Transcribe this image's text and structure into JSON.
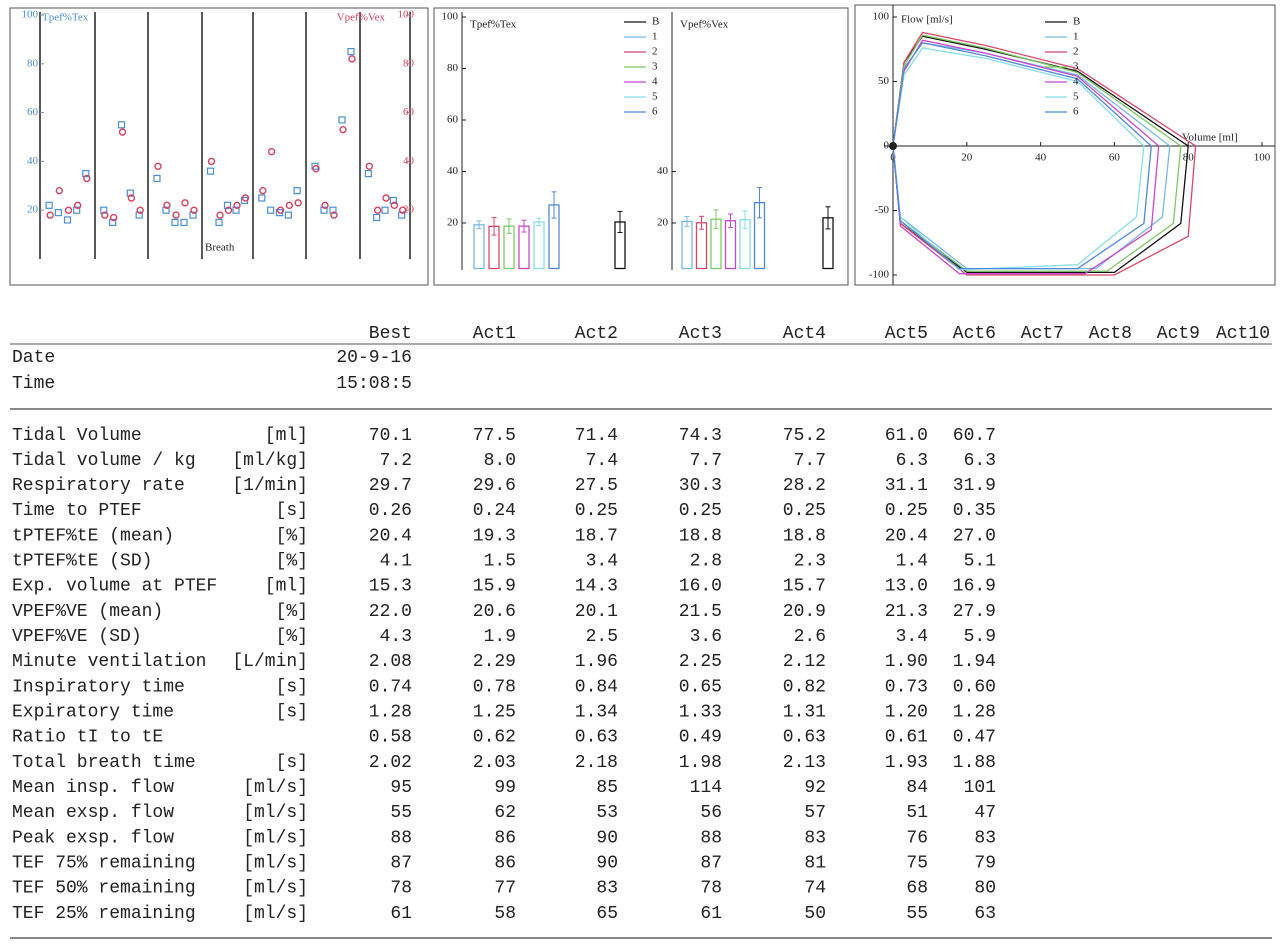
{
  "panels": [
    {
      "type": "scatter",
      "left_label": "Tpef%Tex",
      "right_label": "Vpef%Vex",
      "xlabel": "Breath",
      "ylim": [
        0,
        100
      ],
      "yticks": [
        20,
        40,
        60,
        80,
        100
      ],
      "y2ticks": [
        20,
        40,
        60,
        80,
        100
      ],
      "series": [
        {
          "color": "#4a8fd6",
          "marker": "square",
          "values": [
            [
              22,
              19,
              16,
              20,
              35
            ],
            [
              20,
              15,
              55,
              27,
              18
            ],
            [
              33,
              20,
              15,
              15,
              18
            ],
            [
              36,
              15,
              22,
              20,
              24
            ],
            [
              25,
              20,
              19,
              18,
              28
            ],
            [
              38,
              20,
              20,
              57,
              85
            ],
            [
              35,
              17,
              20,
              24,
              18
            ]
          ]
        },
        {
          "color": "#d8405e",
          "marker": "circle",
          "values": [
            [
              18,
              28,
              20,
              22,
              33
            ],
            [
              18,
              17,
              52,
              25,
              20
            ],
            [
              38,
              22,
              18,
              23,
              20
            ],
            [
              40,
              18,
              20,
              22,
              25
            ],
            [
              28,
              44,
              20,
              22,
              23
            ],
            [
              37,
              22,
              18,
              53,
              82
            ],
            [
              38,
              20,
              25,
              22,
              20
            ]
          ]
        }
      ]
    },
    {
      "type": "bar",
      "ylim": [
        0,
        100
      ],
      "series": [
        {
          "name": "B",
          "color": "#111111"
        },
        {
          "name": "1",
          "color": "#7ab8e8"
        },
        {
          "name": "2",
          "color": "#d8486a"
        },
        {
          "name": "3",
          "color": "#7cc864"
        },
        {
          "name": "4",
          "color": "#c848c8"
        },
        {
          "name": "5",
          "color": "#88dde8"
        },
        {
          "name": "6",
          "color": "#5088d8"
        }
      ],
      "subplots": [
        {
          "title": "Tpef%Tex",
          "yticks": [
            20,
            40,
            60,
            80,
            100
          ],
          "values": [
            20.4,
            19.3,
            18.7,
            18.8,
            18.8,
            20.4,
            27.0
          ],
          "errors": [
            4.1,
            1.5,
            3.4,
            2.8,
            2.3,
            1.4,
            5.1
          ]
        },
        {
          "title": "Vpef%Vex",
          "yticks": [
            20,
            40
          ],
          "values": [
            22.0,
            20.6,
            20.1,
            21.5,
            20.9,
            21.3,
            27.9
          ],
          "errors": [
            4.3,
            1.9,
            2.5,
            3.6,
            2.6,
            3.4,
            5.9
          ]
        }
      ]
    },
    {
      "type": "line",
      "ylabel": "Flow [ml/s]",
      "xlabel": "Volume [ml]",
      "xlim": [
        0,
        100
      ],
      "ylim": [
        -100,
        100
      ],
      "xticks": [
        0,
        20,
        40,
        60,
        80,
        100
      ],
      "yticks": [
        -100,
        -50,
        0,
        50,
        100
      ],
      "series": [
        {
          "name": "B",
          "color": "#111111",
          "x": [
            0,
            3,
            8,
            25,
            50,
            80,
            78,
            60,
            20,
            2,
            0
          ],
          "y": [
            0,
            65,
            85,
            75,
            58,
            0,
            -60,
            -98,
            -98,
            -60,
            0
          ]
        },
        {
          "name": "1",
          "color": "#7ab8e8",
          "x": [
            0,
            3,
            8,
            25,
            50,
            75,
            73,
            55,
            20,
            2,
            0
          ],
          "y": [
            0,
            60,
            80,
            72,
            55,
            0,
            -55,
            -95,
            -95,
            -55,
            0
          ]
        },
        {
          "name": "2",
          "color": "#d8486a",
          "x": [
            0,
            3,
            8,
            25,
            50,
            82,
            80,
            60,
            20,
            2,
            0
          ],
          "y": [
            0,
            65,
            88,
            78,
            60,
            0,
            -70,
            -100,
            -100,
            -60,
            0
          ]
        },
        {
          "name": "3",
          "color": "#7cc864",
          "x": [
            0,
            3,
            8,
            25,
            50,
            78,
            76,
            58,
            20,
            2,
            0
          ],
          "y": [
            0,
            62,
            86,
            76,
            57,
            0,
            -60,
            -97,
            -97,
            -58,
            0
          ]
        },
        {
          "name": "4",
          "color": "#c848c8",
          "x": [
            0,
            3,
            8,
            25,
            50,
            72,
            70,
            52,
            18,
            2,
            0
          ],
          "y": [
            0,
            58,
            82,
            72,
            54,
            0,
            -65,
            -99,
            -99,
            -62,
            0
          ]
        },
        {
          "name": "5",
          "color": "#88dde8",
          "x": [
            0,
            3,
            8,
            25,
            50,
            68,
            66,
            50,
            18,
            2,
            0
          ],
          "y": [
            0,
            55,
            76,
            68,
            50,
            0,
            -55,
            -92,
            -96,
            -55,
            0
          ]
        },
        {
          "name": "6",
          "color": "#5088d8",
          "x": [
            0,
            3,
            8,
            25,
            50,
            70,
            68,
            50,
            18,
            2,
            0
          ],
          "y": [
            0,
            60,
            80,
            70,
            52,
            0,
            -60,
            -95,
            -95,
            -58,
            0
          ]
        }
      ]
    }
  ],
  "table": {
    "columns": [
      "Best",
      "Act1",
      "Act2",
      "Act3",
      "Act4",
      "Act5",
      "Act6",
      "Act7",
      "Act8",
      "Act9",
      "Act10"
    ],
    "meta_rows": [
      {
        "label": "Date",
        "values": [
          "20-9-16"
        ]
      },
      {
        "label": "Time",
        "values": [
          "15:08:5"
        ]
      }
    ],
    "rows": [
      {
        "label": "Tidal Volume",
        "unit": "[ml]",
        "values": [
          "70.1",
          "77.5",
          "71.4",
          "74.3",
          "75.2",
          "61.0",
          "60.7"
        ]
      },
      {
        "label": "Tidal volume / kg",
        "unit": "[ml/kg]",
        "values": [
          "7.2",
          "8.0",
          "7.4",
          "7.7",
          "7.7",
          "6.3",
          "6.3"
        ]
      },
      {
        "label": "Respiratory rate",
        "unit": "[1/min]",
        "values": [
          "29.7",
          "29.6",
          "27.5",
          "30.3",
          "28.2",
          "31.1",
          "31.9"
        ]
      },
      {
        "label": "Time to PTEF",
        "unit": "[s]",
        "values": [
          "0.26",
          "0.24",
          "0.25",
          "0.25",
          "0.25",
          "0.25",
          "0.35"
        ]
      },
      {
        "label": "tPTEF%tE (mean)",
        "unit": "[%]",
        "values": [
          "20.4",
          "19.3",
          "18.7",
          "18.8",
          "18.8",
          "20.4",
          "27.0"
        ]
      },
      {
        "label": "tPTEF%tE (SD)",
        "unit": "[%]",
        "values": [
          "4.1",
          "1.5",
          "3.4",
          "2.8",
          "2.3",
          "1.4",
          "5.1"
        ]
      },
      {
        "label": "Exp. volume at PTEF",
        "unit": "[ml]",
        "values": [
          "15.3",
          "15.9",
          "14.3",
          "16.0",
          "15.7",
          "13.0",
          "16.9"
        ]
      },
      {
        "label": "VPEF%VE (mean)",
        "unit": "[%]",
        "values": [
          "22.0",
          "20.6",
          "20.1",
          "21.5",
          "20.9",
          "21.3",
          "27.9"
        ]
      },
      {
        "label": "VPEF%VE (SD)",
        "unit": "[%]",
        "values": [
          "4.3",
          "1.9",
          "2.5",
          "3.6",
          "2.6",
          "3.4",
          "5.9"
        ]
      },
      {
        "label": "Minute ventilation",
        "unit": "[L/min]",
        "values": [
          "2.08",
          "2.29",
          "1.96",
          "2.25",
          "2.12",
          "1.90",
          "1.94"
        ]
      },
      {
        "label": "Inspiratory time",
        "unit": "[s]",
        "values": [
          "0.74",
          "0.78",
          "0.84",
          "0.65",
          "0.82",
          "0.73",
          "0.60"
        ]
      },
      {
        "label": "Expiratory time",
        "unit": "[s]",
        "values": [
          "1.28",
          "1.25",
          "1.34",
          "1.33",
          "1.31",
          "1.20",
          "1.28"
        ]
      },
      {
        "label": "Ratio tI to tE",
        "values": [
          "0.58",
          "0.62",
          "0.63",
          "0.49",
          "0.63",
          "0.61",
          "0.47"
        ]
      },
      {
        "label": "Total breath time",
        "unit": "[s]",
        "values": [
          "2.02",
          "2.03",
          "2.18",
          "1.98",
          "2.13",
          "1.93",
          "1.88"
        ]
      },
      {
        "label": "Mean insp. flow",
        "unit": "[ml/s]",
        "values": [
          "95",
          "99",
          "85",
          "114",
          "92",
          "84",
          "101"
        ]
      },
      {
        "label": "Mean exsp. flow",
        "unit": "[ml/s]",
        "values": [
          "55",
          "62",
          "53",
          "56",
          "57",
          "51",
          "47"
        ]
      },
      {
        "label": "Peak exsp. flow",
        "unit": "[ml/s]",
        "values": [
          "88",
          "86",
          "90",
          "88",
          "83",
          "76",
          "83"
        ]
      },
      {
        "label": "TEF 75% remaining",
        "unit": "[ml/s]",
        "values": [
          "87",
          "86",
          "90",
          "87",
          "81",
          "75",
          "79"
        ]
      },
      {
        "label": "TEF 50% remaining",
        "unit": "[ml/s]",
        "values": [
          "78",
          "77",
          "83",
          "78",
          "74",
          "68",
          "80"
        ]
      },
      {
        "label": "TEF 25% remaining",
        "unit": "[ml/s]",
        "values": [
          "61",
          "58",
          "65",
          "61",
          "50",
          "55",
          "63"
        ]
      }
    ]
  }
}
